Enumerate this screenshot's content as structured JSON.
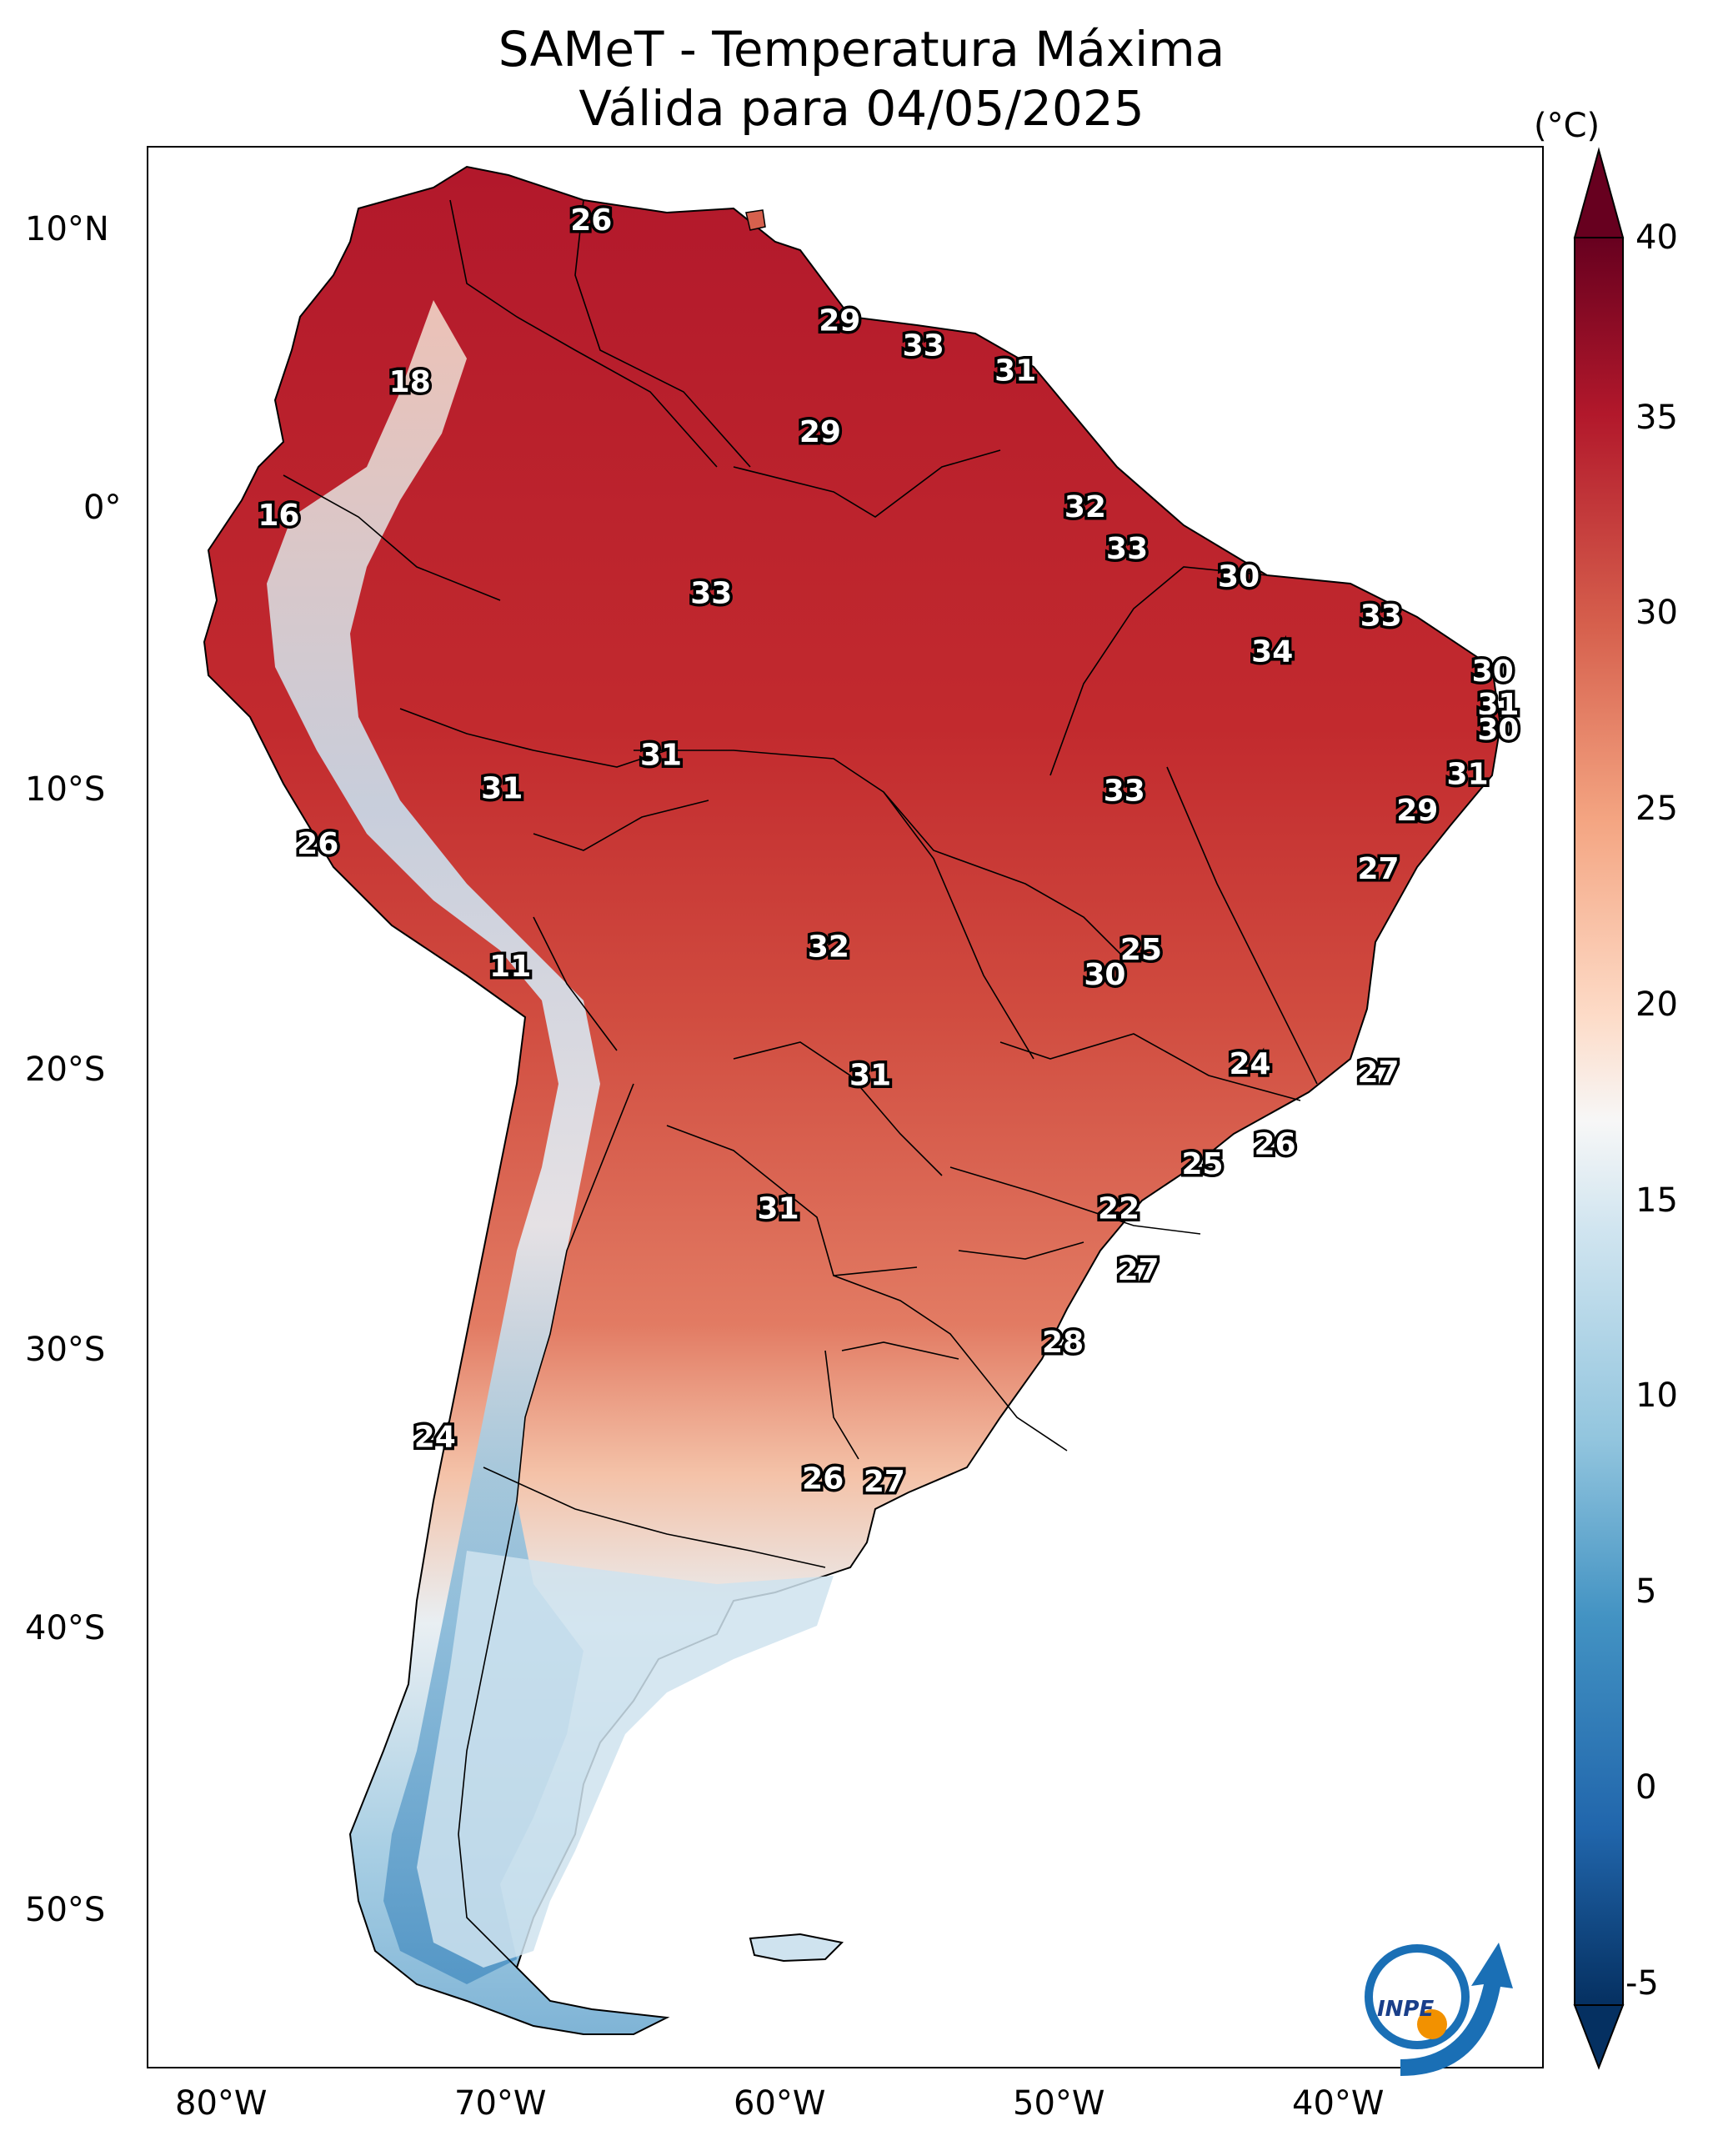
{
  "map": {
    "title_line1": "SAMeT - Temperatura Máxima",
    "title_line2": "Válida para 04/05/2025",
    "logo_text": "INPE",
    "region": "South America",
    "lon_ticks": [
      "80°W",
      "70°W",
      "60°W",
      "50°W",
      "40°W"
    ],
    "lat_ticks": [
      "10°N",
      "0°",
      "10°S",
      "20°S",
      "30°S",
      "40°S",
      "50°S"
    ]
  },
  "colorbar": {
    "unit": "(°C)",
    "ticks": [
      "40",
      "35",
      "30",
      "25",
      "20",
      "15",
      "10",
      "5",
      "0",
      "-5"
    ],
    "range": [
      -5,
      40
    ],
    "colors": {
      "max": "#67001f",
      "hot": "#b2182b",
      "warm": "#d6604d",
      "mild": "#f4a582",
      "light": "#fddbc7",
      "neutral": "#f7f7f7",
      "cool": "#d1e5f0",
      "cold": "#92c5de",
      "colder": "#4393c3",
      "coldest": "#2166ac",
      "min": "#053061"
    }
  },
  "chart_data": {
    "type": "contour",
    "title": "SAMeT - Temperatura Máxima / Válida para 04/05/2025",
    "units": "°C",
    "lon_range": [
      -83,
      -33
    ],
    "lat_range": [
      -56,
      13
    ],
    "labels": [
      {
        "lon": -67.1,
        "lat": 10.3,
        "value": "26"
      },
      {
        "lon": -58.2,
        "lat": 6.7,
        "value": "29"
      },
      {
        "lon": -55.2,
        "lat": 5.8,
        "value": "33"
      },
      {
        "lon": -51.9,
        "lat": 4.9,
        "value": "31"
      },
      {
        "lon": -73.6,
        "lat": 4.5,
        "value": "18"
      },
      {
        "lon": -58.9,
        "lat": 2.7,
        "value": "29"
      },
      {
        "lon": -49.4,
        "lat": 0.0,
        "value": "32"
      },
      {
        "lon": -78.3,
        "lat": -0.3,
        "value": "16"
      },
      {
        "lon": -47.9,
        "lat": -1.5,
        "value": "33"
      },
      {
        "lon": -43.9,
        "lat": -2.5,
        "value": "30"
      },
      {
        "lon": -62.8,
        "lat": -3.1,
        "value": "33"
      },
      {
        "lon": -38.8,
        "lat": -3.9,
        "value": "33"
      },
      {
        "lon": -42.7,
        "lat": -5.2,
        "value": "34"
      },
      {
        "lon": -34.8,
        "lat": -5.9,
        "value": "30"
      },
      {
        "lon": -34.6,
        "lat": -7.1,
        "value": "31"
      },
      {
        "lon": -34.6,
        "lat": -8.0,
        "value": "30"
      },
      {
        "lon": -64.6,
        "lat": -8.9,
        "value": "31"
      },
      {
        "lon": -35.7,
        "lat": -9.6,
        "value": "31"
      },
      {
        "lon": -70.3,
        "lat": -10.1,
        "value": "31"
      },
      {
        "lon": -48.0,
        "lat": -10.2,
        "value": "33"
      },
      {
        "lon": -37.5,
        "lat": -10.9,
        "value": "29"
      },
      {
        "lon": -76.9,
        "lat": -12.1,
        "value": "26"
      },
      {
        "lon": -38.9,
        "lat": -13.0,
        "value": "27"
      },
      {
        "lon": -58.6,
        "lat": -15.8,
        "value": "32"
      },
      {
        "lon": -47.4,
        "lat": -15.9,
        "value": "25"
      },
      {
        "lon": -48.7,
        "lat": -16.8,
        "value": "30"
      },
      {
        "lon": -70.0,
        "lat": -16.5,
        "value": "11"
      },
      {
        "lon": -43.5,
        "lat": -20.0,
        "value": "24"
      },
      {
        "lon": -38.9,
        "lat": -20.3,
        "value": "27"
      },
      {
        "lon": -57.1,
        "lat": -20.4,
        "value": "31"
      },
      {
        "lon": -42.6,
        "lat": -22.9,
        "value": "26"
      },
      {
        "lon": -45.2,
        "lat": -23.6,
        "value": "25"
      },
      {
        "lon": -60.4,
        "lat": -25.2,
        "value": "31"
      },
      {
        "lon": -48.2,
        "lat": -25.2,
        "value": "22"
      },
      {
        "lon": -47.5,
        "lat": -27.4,
        "value": "27"
      },
      {
        "lon": -50.2,
        "lat": -30.0,
        "value": "28"
      },
      {
        "lon": -72.7,
        "lat": -33.4,
        "value": "24"
      },
      {
        "lon": -58.8,
        "lat": -34.9,
        "value": "26"
      },
      {
        "lon": -56.6,
        "lat": -35.0,
        "value": "27"
      }
    ]
  }
}
